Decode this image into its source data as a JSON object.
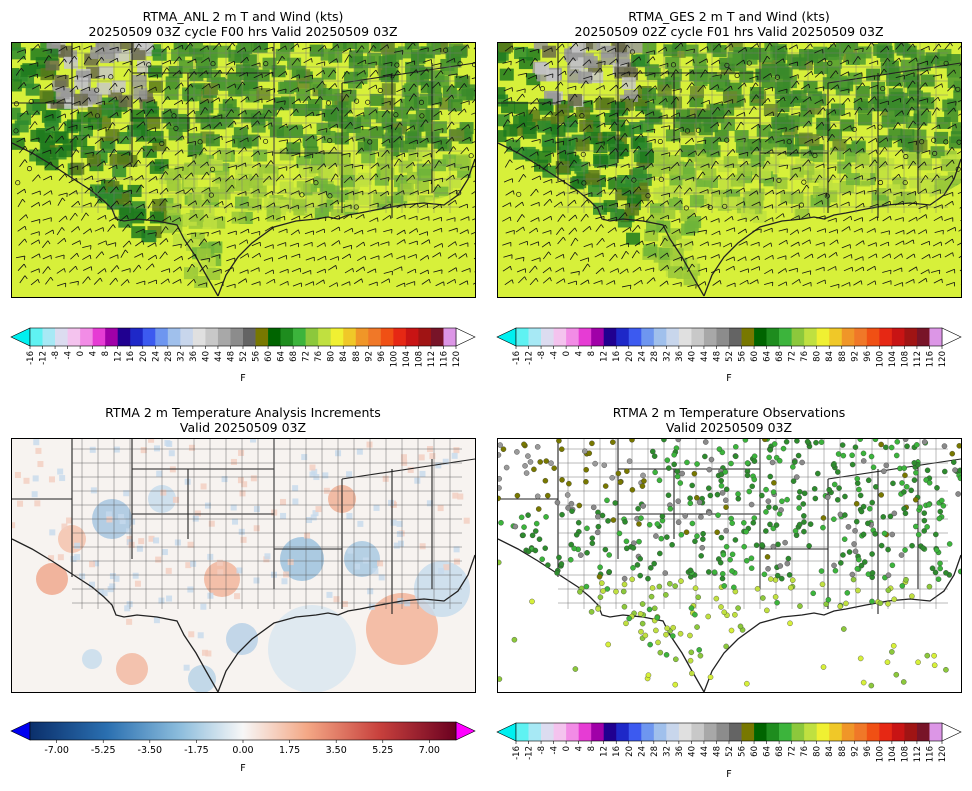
{
  "panels": [
    {
      "title_line1": "RTMA_ANL 2 m T and Wind (kts)",
      "title_line2": "20250509 03Z cycle F00 hrs Valid 20250509 03Z"
    },
    {
      "title_line1": "RTMA_GES 2 m T and Wind (kts)",
      "title_line2": "20250509 02Z cycle F01 hrs Valid 20250509 03Z"
    },
    {
      "title_line1": "RTMA 2 m Temperature Analysis Increments",
      "title_line2": "Valid 20250509 03Z"
    },
    {
      "title_line1": "RTMA 2 m Temperature Observations",
      "title_line2": "Valid 20250509 03Z"
    }
  ],
  "colorbar_unit": "F",
  "chart_data": [
    {
      "type": "heatmap",
      "title": "RTMA_ANL 2 m T and Wind (kts)",
      "subtitle": "20250509 03Z cycle F00 hrs Valid 20250509 03Z",
      "colorbar_label": "F",
      "colorbar_ticks": [
        "-16",
        "-12",
        "-8",
        "-4",
        "0",
        "4",
        "8",
        "12",
        "16",
        "20",
        "24",
        "28",
        "32",
        "36",
        "40",
        "44",
        "48",
        "52",
        "56",
        "60",
        "64",
        "68",
        "72",
        "76",
        "80",
        "84",
        "88",
        "92",
        "96",
        "100",
        "104",
        "108",
        "112",
        "116",
        "120"
      ],
      "colorbar_colors": [
        "#5ff2f2",
        "#a7e9f5",
        "#dcdcf0",
        "#f4c3ee",
        "#f28ce6",
        "#e63cd4",
        "#a000a8",
        "#200090",
        "#1e28c8",
        "#3c5af0",
        "#6e96f0",
        "#a0c0ec",
        "#c8d6ec",
        "#e0e0e0",
        "#c8c8c8",
        "#a8a8a8",
        "#8c8c8c",
        "#646464",
        "#787800",
        "#006400",
        "#1e8c1e",
        "#3cb43c",
        "#8cc83c",
        "#c0e040",
        "#f0f032",
        "#f0c828",
        "#f09628",
        "#f07828",
        "#f05014",
        "#e62814",
        "#c81414",
        "#a01414",
        "#781428",
        "#dc96e6"
      ],
      "colorbar_extend": "both",
      "map_region": "South-central United States and Gulf of Mexico",
      "overlay": "wind barbs"
    },
    {
      "type": "heatmap",
      "title": "RTMA_GES 2 m T and Wind (kts)",
      "subtitle": "20250509 02Z cycle F01 hrs Valid 20250509 03Z",
      "colorbar_label": "F",
      "colorbar_ticks": [
        "-16",
        "-12",
        "-8",
        "-4",
        "0",
        "4",
        "8",
        "12",
        "16",
        "20",
        "24",
        "28",
        "32",
        "36",
        "40",
        "44",
        "48",
        "52",
        "56",
        "60",
        "64",
        "68",
        "72",
        "76",
        "80",
        "84",
        "88",
        "92",
        "96",
        "100",
        "104",
        "108",
        "112",
        "116",
        "120"
      ],
      "colorbar_extend": "both",
      "overlay": "wind barbs"
    },
    {
      "type": "heatmap",
      "title": "RTMA 2 m Temperature Analysis Increments",
      "subtitle": "Valid 20250509 03Z",
      "colorbar_label": "F",
      "colorbar_ticks": [
        "-7.00",
        "-5.25",
        "-3.50",
        "-1.75",
        "0.00",
        "1.75",
        "3.50",
        "5.25",
        "7.00"
      ],
      "colorbar_range": [
        -8.0,
        8.0
      ],
      "colormap": "diverging blue-white-red",
      "colorbar_extend": "both",
      "extend_colors": {
        "low": "#0000f0",
        "high": "#ff00ff"
      }
    },
    {
      "type": "scatter",
      "title": "RTMA 2 m Temperature Observations",
      "subtitle": "Valid 20250509 03Z",
      "colorbar_label": "F",
      "colorbar_ticks": [
        "-16",
        "-12",
        "-8",
        "-4",
        "0",
        "4",
        "8",
        "12",
        "16",
        "20",
        "24",
        "28",
        "32",
        "36",
        "40",
        "44",
        "48",
        "52",
        "56",
        "60",
        "64",
        "68",
        "72",
        "76",
        "80",
        "84",
        "88",
        "92",
        "96",
        "100",
        "104",
        "108",
        "112",
        "116",
        "120"
      ],
      "colorbar_extend": "both",
      "dominant_obs_ranges_F": [
        "56-64",
        "64-72",
        "72-80"
      ]
    }
  ]
}
